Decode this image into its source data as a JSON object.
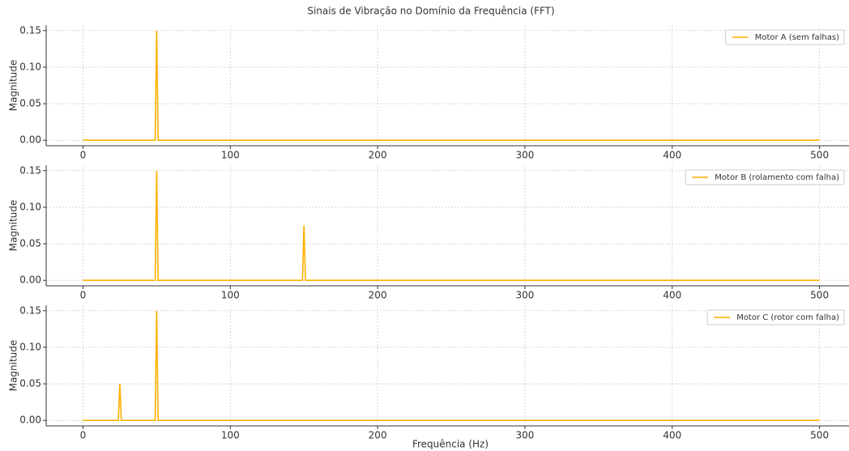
{
  "chart_data": [
    {
      "type": "line",
      "title": "Sinais de Vibração no Domínio da Frequência (FFT)",
      "ylabel": "Magnitude",
      "x": [
        0,
        49,
        50,
        51,
        500
      ],
      "series": [
        {
          "name": "Motor A (sem falhas)",
          "color": "#ffb000",
          "values": [
            0,
            0,
            0.15,
            0,
            0
          ]
        }
      ],
      "xlim": [
        -25,
        520
      ],
      "xticks": [
        0,
        100,
        200,
        300,
        400,
        500
      ],
      "ylim": [
        -0.0075,
        0.1575
      ],
      "yticks": [
        {
          "value": 0,
          "label": "0.00"
        },
        {
          "value": 0.05,
          "label": "0.05"
        },
        {
          "value": 0.1,
          "label": "0.10"
        },
        {
          "value": 0.15,
          "label": "0.15"
        }
      ],
      "grid": true,
      "legend": "upper right"
    },
    {
      "type": "line",
      "ylabel": "Magnitude",
      "x": [
        0,
        49,
        50,
        51,
        149,
        150,
        151,
        500
      ],
      "series": [
        {
          "name": "Motor B (rolamento com falha)",
          "color": "#ffb000",
          "values": [
            0,
            0,
            0.15,
            0,
            0,
            0.075,
            0,
            0
          ]
        }
      ],
      "xlim": [
        -25,
        520
      ],
      "xticks": [
        0,
        100,
        200,
        300,
        400,
        500
      ],
      "ylim": [
        -0.0075,
        0.1575
      ],
      "yticks": [
        {
          "value": 0,
          "label": "0.00"
        },
        {
          "value": 0.05,
          "label": "0.05"
        },
        {
          "value": 0.1,
          "label": "0.10"
        },
        {
          "value": 0.15,
          "label": "0.15"
        }
      ],
      "grid": true,
      "legend": "upper right"
    },
    {
      "type": "line",
      "ylabel": "Magnitude",
      "xlabel": "Frequência (Hz)",
      "x": [
        0,
        24,
        25,
        26,
        49,
        50,
        51,
        500
      ],
      "series": [
        {
          "name": "Motor C (rotor com falha)",
          "color": "#ffb000",
          "values": [
            0,
            0,
            0.05,
            0,
            0,
            0.15,
            0,
            0
          ]
        }
      ],
      "xlim": [
        -25,
        520
      ],
      "xticks": [
        0,
        100,
        200,
        300,
        400,
        500
      ],
      "ylim": [
        -0.0075,
        0.1575
      ],
      "yticks": [
        {
          "value": 0,
          "label": "0.00"
        },
        {
          "value": 0.05,
          "label": "0.05"
        },
        {
          "value": 0.1,
          "label": "0.10"
        },
        {
          "value": 0.15,
          "label": "0.15"
        }
      ],
      "grid": true,
      "legend": "upper right"
    }
  ]
}
